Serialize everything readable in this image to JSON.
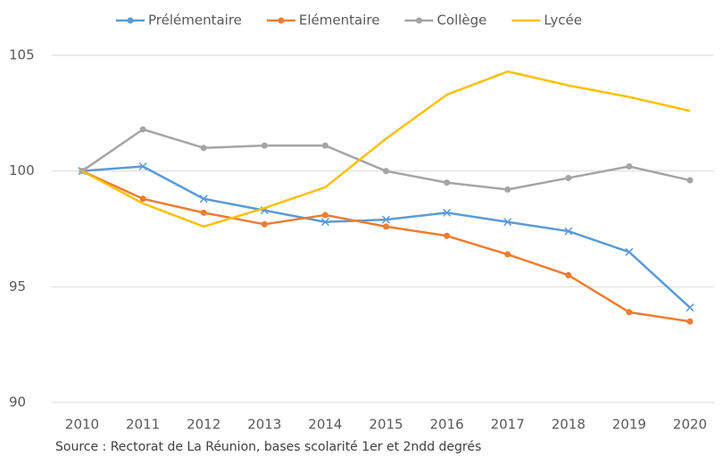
{
  "chart_data": {
    "type": "line",
    "source": "Source : Rectorat de La Réunion, bases scolarité 1er et 2ndd degrés",
    "categories": [
      "2010",
      "2011",
      "2012",
      "2013",
      "2014",
      "2015",
      "2016",
      "2017",
      "2018",
      "2019",
      "2020"
    ],
    "series": [
      {
        "name": "Prélémentaire",
        "color": "#5b9bd5",
        "values": [
          100,
          100.2,
          98.8,
          98.3,
          97.8,
          97.9,
          98.2,
          97.8,
          97.4,
          96.5,
          94.1
        ]
      },
      {
        "name": "Elémentaire",
        "color": "#ed7d31",
        "values": [
          100,
          98.8,
          98.2,
          97.7,
          98.1,
          97.6,
          97.2,
          96.4,
          95.5,
          93.9,
          93.5
        ]
      },
      {
        "name": "Collège",
        "color": "#a5a5a5",
        "values": [
          100,
          101.8,
          101.0,
          101.1,
          101.1,
          100.0,
          99.5,
          99.2,
          99.7,
          100.2,
          99.6
        ]
      },
      {
        "name": "Lycée",
        "color": "#ffc000",
        "values": [
          100,
          98.6,
          97.6,
          98.4,
          99.3,
          101.4,
          103.3,
          104.3,
          103.7,
          103.2,
          102.6
        ]
      }
    ],
    "ylim": [
      90,
      105
    ],
    "yticks": [
      90,
      95,
      100,
      105
    ],
    "grid": true,
    "legend": "top"
  }
}
